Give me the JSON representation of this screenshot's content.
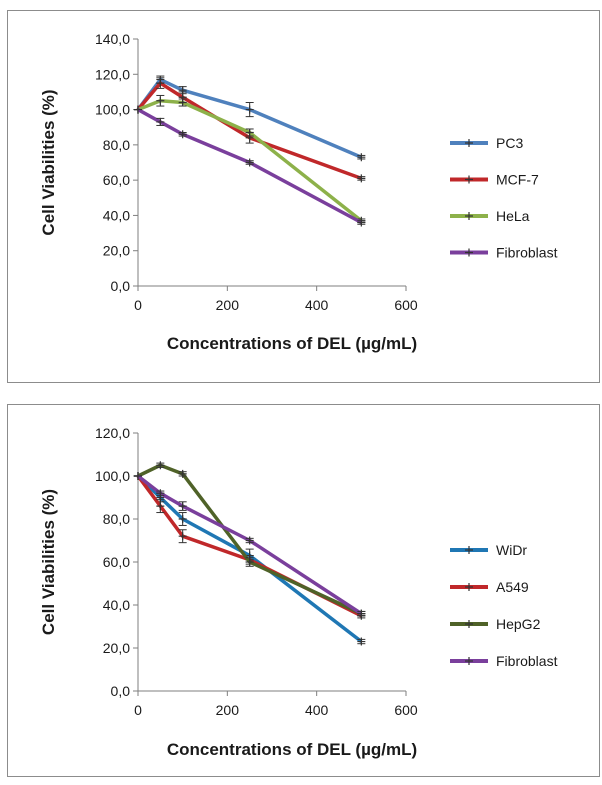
{
  "chart_data": [
    {
      "type": "line",
      "xlabel": "Concentrations of DEL (µg/mL)",
      "ylabel": "Cell Viabilities (%)",
      "xlim": [
        0,
        600
      ],
      "ylim": [
        0,
        140
      ],
      "xticks": [
        "0",
        "200",
        "400",
        "600"
      ],
      "yticks": [
        "0,0",
        "20,0",
        "40,0",
        "60,0",
        "80,0",
        "100,0",
        "120,0",
        "140,0"
      ],
      "x": [
        0,
        50,
        100,
        250,
        500
      ],
      "legend_position": "right",
      "grid": false,
      "series": [
        {
          "name": "PC3",
          "color": "#4f81bd",
          "values": [
            100,
            117,
            111,
            100,
            73
          ],
          "errors": [
            0,
            2,
            2,
            4,
            1
          ]
        },
        {
          "name": "MCF-7",
          "color": "#c0282a",
          "values": [
            100,
            115,
            107,
            84,
            61
          ],
          "errors": [
            0,
            3,
            3,
            3,
            1
          ]
        },
        {
          "name": "HeLa",
          "color": "#8db14a",
          "values": [
            100,
            105,
            104,
            87,
            37
          ],
          "errors": [
            0,
            3,
            2,
            2,
            1
          ]
        },
        {
          "name": "Fibroblast",
          "color": "#7a3f9c",
          "values": [
            100,
            93,
            86,
            70,
            36
          ],
          "errors": [
            0,
            2,
            1,
            1,
            1
          ]
        }
      ]
    },
    {
      "type": "line",
      "xlabel": "Concentrations of DEL (µg/mL)",
      "ylabel": "Cell Viabilities (%)",
      "xlim": [
        0,
        600
      ],
      "ylim": [
        0,
        120
      ],
      "xticks": [
        "0",
        "200",
        "400",
        "600"
      ],
      "yticks": [
        "0,0",
        "20,0",
        "40,0",
        "60,0",
        "80,0",
        "100,0",
        "120,0"
      ],
      "x": [
        0,
        50,
        100,
        250,
        500
      ],
      "legend_position": "right",
      "grid": false,
      "series": [
        {
          "name": "WiDr",
          "color": "#1f77b4",
          "values": [
            100,
            90,
            80,
            63,
            23
          ],
          "errors": [
            0,
            2,
            3,
            3,
            1
          ]
        },
        {
          "name": "A549",
          "color": "#c0282a",
          "values": [
            100,
            86,
            72,
            61,
            35
          ],
          "errors": [
            0,
            3,
            3,
            2,
            1
          ]
        },
        {
          "name": "HepG2",
          "color": "#4f6228",
          "values": [
            100,
            105,
            101,
            60,
            36
          ],
          "errors": [
            0,
            1,
            1,
            2,
            1
          ]
        },
        {
          "name": "Fibroblast",
          "color": "#7a3f9c",
          "values": [
            100,
            92,
            86,
            70,
            36
          ],
          "errors": [
            0,
            1,
            2,
            1,
            1
          ]
        }
      ]
    }
  ]
}
